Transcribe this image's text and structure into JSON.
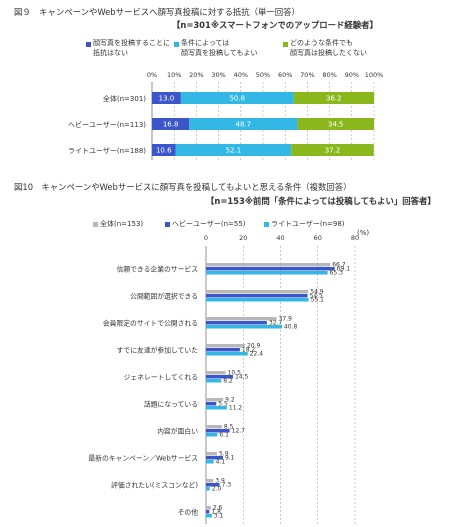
{
  "fig9": {
    "title": "図９　キャンペーンやWebサービスへ顔写真投稿に対する抵抗（単一回答）",
    "note": "【n=301※スマートフォンでのアップロード経験者】",
    "legend": [
      {
        "label": "顔写真を投稿することに\n抵抗はない",
        "color": "#3b56c8"
      },
      {
        "label": "条件によっては\n顔写真を投稿してもよい",
        "color": "#33b8e6"
      },
      {
        "label": "どのような条件でも\n顔写真は投稿したくない",
        "color": "#8ab81c"
      }
    ]
  },
  "fig10": {
    "title": "図10　キャンペーンやWebサービスに顔写真を投稿してもよいと思える条件（複数回答）",
    "note": "【n=153※前問「条件によっては投稿してもよい」回答者】",
    "legend": [
      {
        "label": "全体(n=153)",
        "color": "#b8b8b8"
      },
      {
        "label": "ヘビーユーザー(n=55)",
        "color": "#3b56c8"
      },
      {
        "label": "ライトユーザー(n=98)",
        "color": "#33b8e6"
      }
    ],
    "unit": "(%)"
  },
  "chart_data": [
    {
      "type": "bar",
      "orientation": "horizontal-stacked",
      "categories": [
        "全体(n=301)",
        "ヘビーユーザー(n=113)",
        "ライトユーザー(n=188)"
      ],
      "series": [
        {
          "name": "顔写真を投稿することに抵抗はない",
          "values": [
            13.0,
            16.8,
            10.6
          ],
          "color": "#3b56c8"
        },
        {
          "name": "条件によっては顔写真を投稿してもよい",
          "values": [
            50.8,
            48.7,
            52.1
          ],
          "color": "#33b8e6"
        },
        {
          "name": "どのような条件でも顔写真は投稿したくない",
          "values": [
            36.2,
            34.5,
            37.2
          ],
          "color": "#8ab81c"
        }
      ],
      "xlim": [
        0,
        100
      ],
      "xticks": [
        "0%",
        "10%",
        "20%",
        "30%",
        "40%",
        "50%",
        "60%",
        "70%",
        "80%",
        "90%",
        "100%"
      ],
      "labels": [
        [
          "13.0",
          "50.8",
          "36.2"
        ],
        [
          "16.8",
          "48.7",
          "34.5"
        ],
        [
          "10.6",
          "52.1",
          "37.2"
        ]
      ]
    },
    {
      "type": "bar",
      "orientation": "horizontal-grouped",
      "categories": [
        "信頼できる企業のサービス",
        "公開範囲が選択できる",
        "会員限定のサイトで公開される",
        "すでに友達が参加していた",
        "ジェネレートしてくれる",
        "話題になっている",
        "内容が面白い",
        "最新のキャンペーン／Webサービス",
        "評価されたい(ミスコンなど)",
        "その他"
      ],
      "series": [
        {
          "name": "全体(n=153)",
          "values": [
            66.7,
            54.9,
            37.9,
            20.9,
            10.5,
            9.2,
            8.5,
            5.9,
            3.9,
            2.6
          ],
          "color": "#b8b8b8"
        },
        {
          "name": "ヘビーユーザー(n=55)",
          "values": [
            69.1,
            54.5,
            32.7,
            18.2,
            14.5,
            5.5,
            12.7,
            9.1,
            7.3,
            1.8
          ],
          "color": "#3b56c8"
        },
        {
          "name": "ライトユーザー(n=98)",
          "values": [
            65.3,
            55.1,
            40.8,
            22.4,
            8.2,
            11.2,
            6.1,
            4.1,
            2.0,
            3.1
          ],
          "color": "#33b8e6"
        }
      ],
      "labels": [
        [
          "66.7",
          "54.9",
          "37.9",
          "20.9",
          "10.5",
          "9.2",
          "8.5",
          "5.9",
          "3.9",
          "2.6"
        ],
        [
          "69.1",
          "54.5",
          "32.7",
          "18.2",
          "14.5",
          "5.5",
          "12.7",
          "9.1",
          "7.3",
          "1.8"
        ],
        [
          "65.3",
          "55.1",
          "40.8",
          "22.4",
          "8.2",
          "11.2",
          "6.1",
          "4.1",
          "2.0",
          "3.1"
        ]
      ],
      "xlim": [
        0,
        80
      ],
      "xticks": [
        "0",
        "20",
        "40",
        "60",
        "80"
      ]
    }
  ]
}
